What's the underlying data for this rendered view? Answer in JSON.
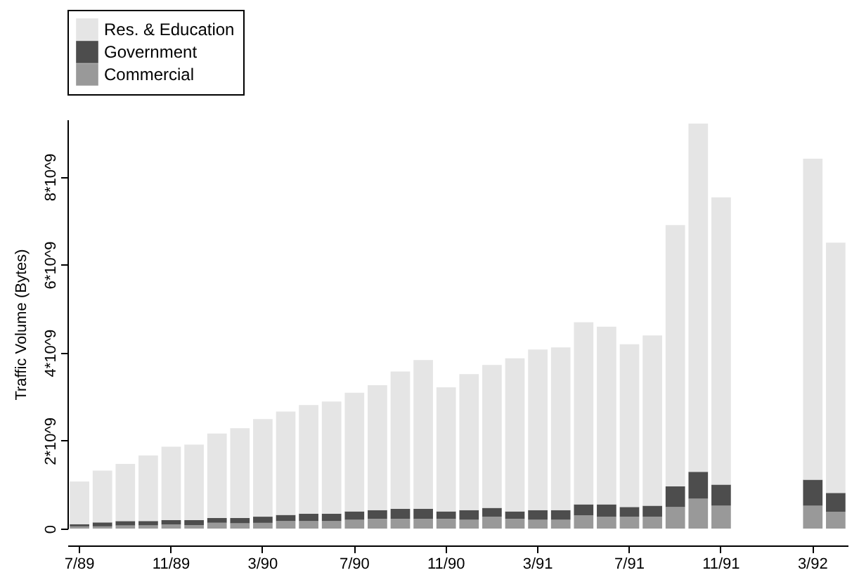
{
  "chart_data": {
    "type": "bar",
    "stacked": true,
    "ylabel": "Traffic Volume (Bytes)",
    "legend": "top",
    "grid": false,
    "categories": [
      "7/89",
      null,
      null,
      null,
      "11/89",
      null,
      null,
      null,
      "3/90",
      null,
      null,
      null,
      "7/90",
      null,
      null,
      null,
      "11/90",
      null,
      null,
      null,
      "3/91",
      null,
      null,
      null,
      "7/91",
      null,
      null,
      null,
      "11/91",
      null,
      null,
      null,
      "3/92",
      null
    ],
    "ylim": [
      0,
      9300000000.0
    ],
    "yticks": [
      {
        "value": 0,
        "label": "0"
      },
      {
        "value": 2000000000.0,
        "label": "2*10^9"
      },
      {
        "value": 4000000000.0,
        "label": "4*10^9"
      },
      {
        "value": 6000000000.0,
        "label": "6*10^9"
      },
      {
        "value": 8000000000.0,
        "label": "8*10^9"
      }
    ],
    "series": [
      {
        "name": "Commercial",
        "color": "#999999",
        "values": [
          50000000.0,
          50000000.0,
          70000000.0,
          70000000.0,
          90000000.0,
          80000000.0,
          130000000.0,
          120000000.0,
          130000000.0,
          170000000.0,
          170000000.0,
          170000000.0,
          200000000.0,
          220000000.0,
          220000000.0,
          220000000.0,
          220000000.0,
          200000000.0,
          270000000.0,
          220000000.0,
          200000000.0,
          200000000.0,
          300000000.0,
          270000000.0,
          270000000.0,
          270000000.0,
          490000000.0,
          680000000.0,
          520000000.0,
          null,
          null,
          null,
          520000000.0,
          380000000.0
        ]
      },
      {
        "name": "Government",
        "color": "#4d4d4d",
        "values": [
          50000000.0,
          90000000.0,
          100000000.0,
          100000000.0,
          100000000.0,
          110000000.0,
          110000000.0,
          120000000.0,
          140000000.0,
          140000000.0,
          170000000.0,
          170000000.0,
          190000000.0,
          200000000.0,
          230000000.0,
          230000000.0,
          170000000.0,
          220000000.0,
          200000000.0,
          170000000.0,
          220000000.0,
          220000000.0,
          250000000.0,
          280000000.0,
          220000000.0,
          250000000.0,
          470000000.0,
          610000000.0,
          480000000.0,
          null,
          null,
          null,
          590000000.0,
          430000000.0
        ]
      },
      {
        "name": "Res. & Education",
        "color": "#e5e5e5",
        "values": [
          970000000.0,
          1180000000.0,
          1300000000.0,
          1490000000.0,
          1670000000.0,
          1720000000.0,
          1920000000.0,
          2040000000.0,
          2220000000.0,
          2350000000.0,
          2470000000.0,
          2550000000.0,
          2700000000.0,
          2840000000.0,
          3120000000.0,
          3380000000.0,
          2820000000.0,
          3090000000.0,
          3250000000.0,
          3480000000.0,
          3650000000.0,
          3700000000.0,
          4140000000.0,
          4040000000.0,
          3700000000.0,
          3870000000.0,
          5940000000.0,
          7920000000.0,
          6530000000.0,
          null,
          null,
          null,
          7300000000.0,
          5690000000.0
        ]
      }
    ]
  }
}
